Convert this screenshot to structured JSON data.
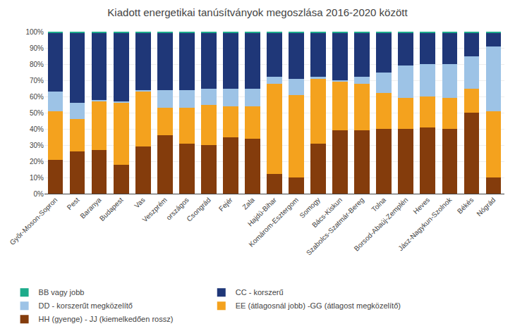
{
  "chart_data": {
    "type": "bar",
    "stacked": true,
    "title": "Kiadott energetikai tanúsítványok megoszlása 2016-2020 között",
    "categories": [
      "Győr-Moson-Sopron",
      "Pest",
      "Baranya",
      "Budapest",
      "Vas",
      "Veszprém",
      "országos",
      "Csongrád",
      "Fejér",
      "Zala",
      "Hajdú-Bihar",
      "Komárom-Esztergom",
      "Somogy",
      "Bács-Kiskun",
      "Szabolcs-Szatmár-Bereg",
      "Tolna",
      "Borsod-Abaúj-Zemplén",
      "Heves",
      "Jász-Nagykun-Szolnok",
      "Békés",
      "Nógrád"
    ],
    "series": [
      {
        "name": "HH (gyenge) - JJ (kiemelkedően rossz)",
        "color": "#843c0c",
        "values": [
          21,
          26,
          27,
          18,
          29,
          36,
          31,
          30,
          35,
          34,
          12,
          10,
          31,
          39,
          39,
          40,
          40,
          41,
          40,
          50,
          10
        ]
      },
      {
        "name": "EE (átlagosnál jobb) -GG (átlagost megközelítő)",
        "color": "#f4a21e",
        "values": [
          30,
          20,
          30,
          38,
          34,
          17,
          22,
          25,
          19,
          20,
          56,
          51,
          40,
          30,
          29,
          22,
          19,
          19,
          19,
          15,
          41
        ]
      },
      {
        "name": "DD - korszerűt megközelítő",
        "color": "#9dc3e6",
        "values": [
          12,
          10,
          1,
          1,
          1,
          11,
          11,
          10,
          11,
          11,
          4,
          10,
          1,
          1,
          4,
          13,
          20,
          20,
          21,
          20,
          40
        ]
      },
      {
        "name": "CC - korszerű",
        "color": "#1f3778",
        "values": [
          36,
          43,
          41,
          42,
          35,
          35,
          35,
          34,
          34,
          34,
          27,
          28,
          27,
          29,
          27,
          24,
          20,
          19,
          19,
          14,
          8
        ]
      },
      {
        "name": "BB vagy jobb",
        "color": "#1dab8b",
        "values": [
          1,
          1,
          1,
          1,
          1,
          1,
          1,
          1,
          1,
          1,
          1,
          1,
          1,
          1,
          1,
          1,
          1,
          1,
          1,
          1,
          1
        ]
      }
    ],
    "ylim": [
      0,
      100
    ],
    "yticks": [
      {
        "value": 0,
        "label": "0%"
      },
      {
        "value": 10,
        "label": "10%"
      },
      {
        "value": 20,
        "label": "20%"
      },
      {
        "value": 30,
        "label": "30%"
      },
      {
        "value": 40,
        "label": "40%"
      },
      {
        "value": 50,
        "label": "50%"
      },
      {
        "value": 60,
        "label": "60%"
      },
      {
        "value": 70,
        "label": "70%"
      },
      {
        "value": 80,
        "label": "80%"
      },
      {
        "value": 90,
        "label": "90%"
      },
      {
        "value": 100,
        "label": "100%"
      }
    ],
    "grid": true,
    "legend": "bottom"
  }
}
